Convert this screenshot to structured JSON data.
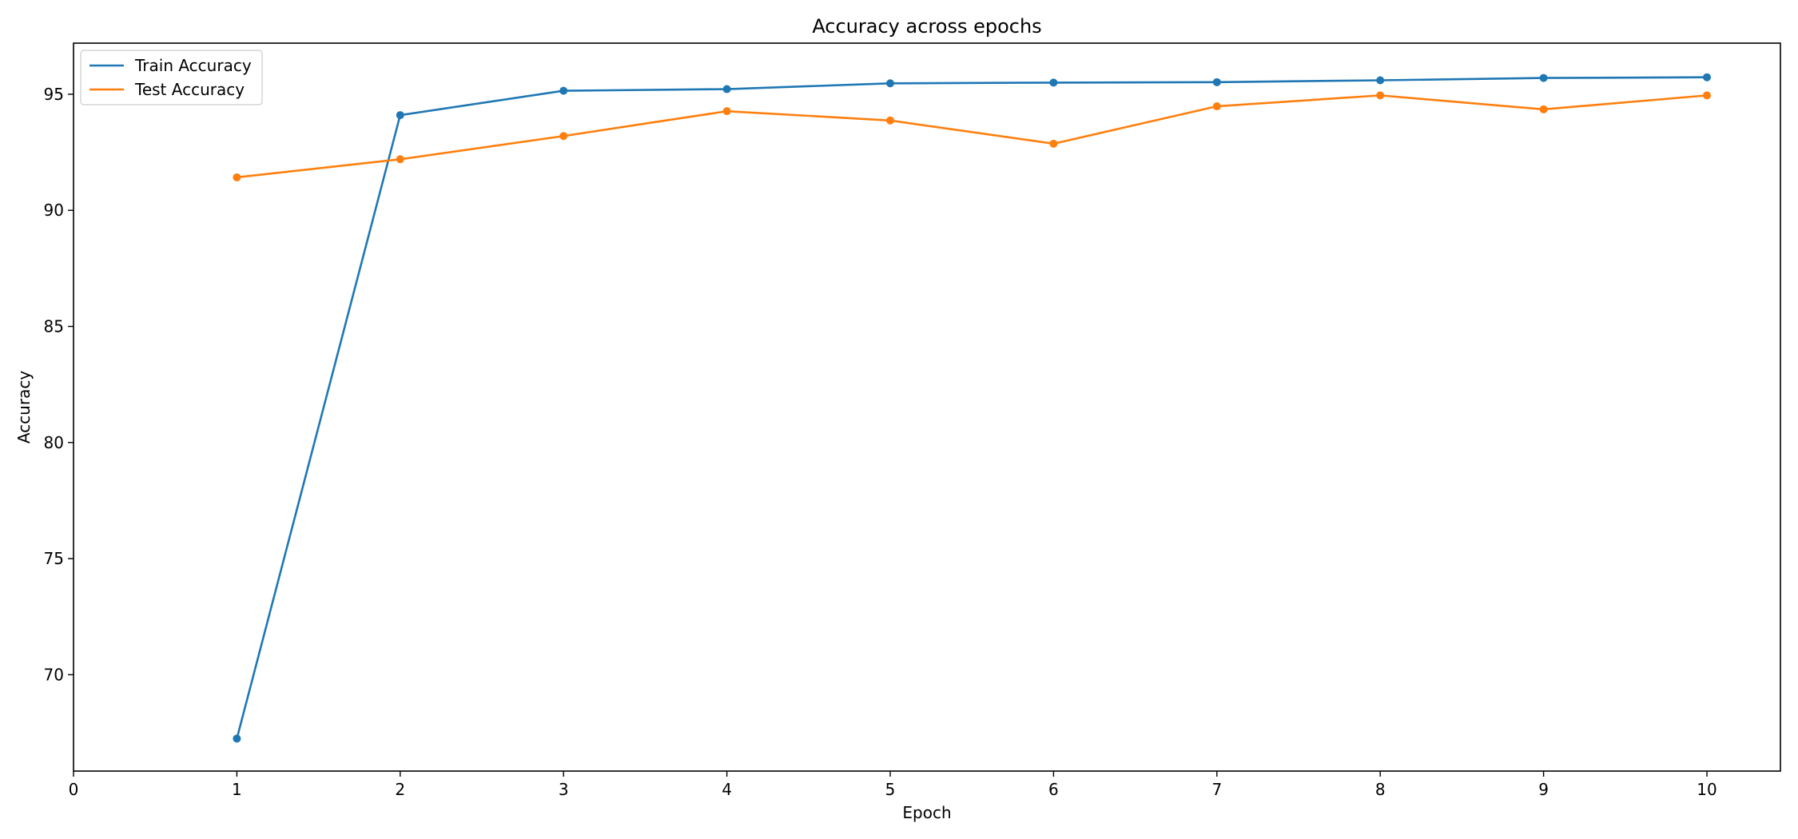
{
  "chart_data": {
    "type": "line",
    "title": "Accuracy across epochs",
    "xlabel": "Epoch",
    "ylabel": "Accuracy",
    "xlim": [
      0,
      10.45
    ],
    "ylim": [
      65.85,
      97.2
    ],
    "xticks": [
      0,
      1,
      2,
      3,
      4,
      5,
      6,
      7,
      8,
      9,
      10
    ],
    "yticks": [
      70,
      75,
      80,
      85,
      90,
      95
    ],
    "grid": false,
    "legend_position": "upper left",
    "x": [
      1,
      2,
      3,
      4,
      5,
      6,
      7,
      8,
      9,
      10
    ],
    "series": [
      {
        "name": "Train Accuracy",
        "color": "#1f77b4",
        "marker": "circle",
        "values": [
          67.25,
          94.1,
          95.15,
          95.22,
          95.47,
          95.5,
          95.52,
          95.6,
          95.7,
          95.73
        ]
      },
      {
        "name": "Test Accuracy",
        "color": "#ff7f0e",
        "marker": "circle",
        "values": [
          91.42,
          92.2,
          93.2,
          94.27,
          93.87,
          92.87,
          94.48,
          94.95,
          94.35,
          94.95
        ]
      }
    ]
  }
}
